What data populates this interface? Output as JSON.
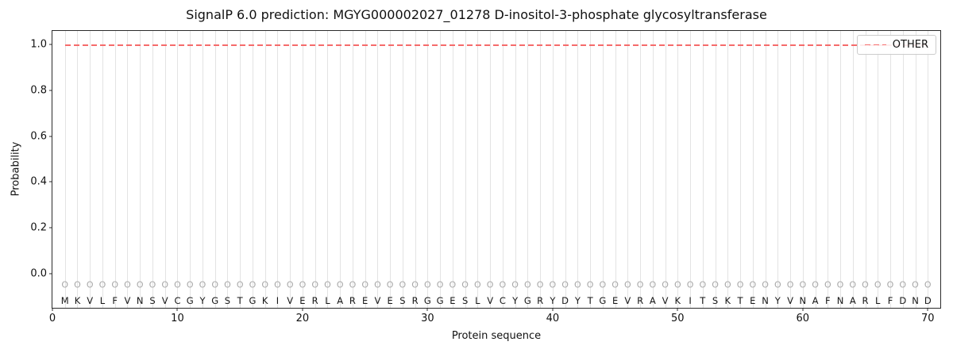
{
  "chart_data": {
    "type": "line",
    "title": "SignalP 6.0 prediction: MGYG000002027_01278 D-inositol-3-phosphate glycosyltransferase",
    "xlabel": "Protein sequence",
    "ylabel": "Probability",
    "xticks": [
      0,
      10,
      20,
      30,
      40,
      50,
      60,
      70
    ],
    "ytick_labels": [
      "0.0",
      "0.2",
      "0.4",
      "0.6",
      "0.8",
      "1.0"
    ],
    "xlim": [
      0,
      71
    ],
    "ylim": [
      -0.15,
      1.06
    ],
    "grid": "vertical line at every residue position",
    "legend": {
      "position": "upper right",
      "entries": [
        {
          "label": "OTHER",
          "color": "#f56b6b",
          "style": "dashed"
        }
      ]
    },
    "series": [
      {
        "name": "OTHER",
        "style": "dashed",
        "color": "#f56b6b",
        "y": 1.0,
        "x_start": 1,
        "x_end": 70
      }
    ],
    "sequence": "MKVLFVNSVCGYGSTGKIVERLAREVESRGGESLVCYGRYDYTGEVRAVKITSKTENYVNAFNARLFDND",
    "position_label_char": "O",
    "marker_row_y": -0.05,
    "sequence_row_y": -0.118
  }
}
